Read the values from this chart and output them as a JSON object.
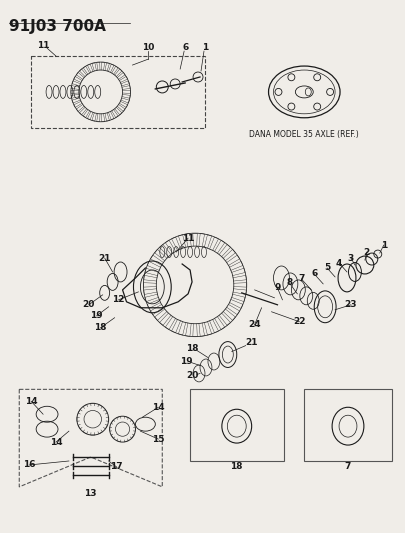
{
  "title": "91J03 700A",
  "dana_label": "DANA MODEL 35 AXLE (REF.)",
  "bg_color": "#f0ede8",
  "text_color": "#1a1a1a"
}
